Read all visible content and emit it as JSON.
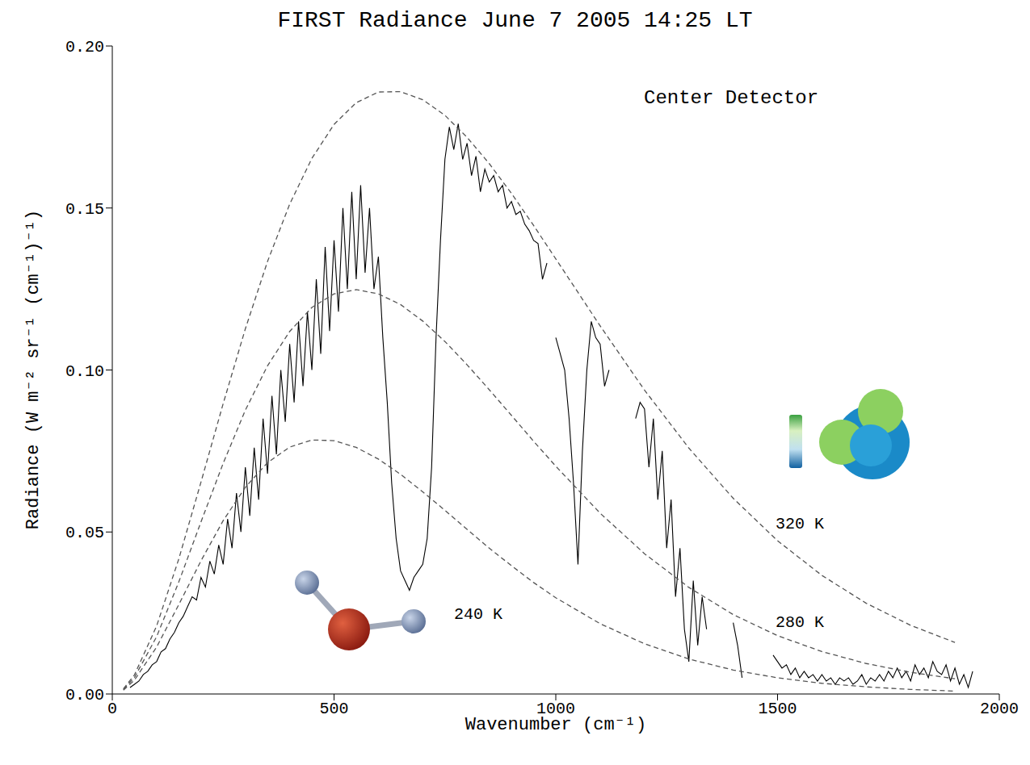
{
  "chart_data": {
    "type": "line",
    "title": "FIRST Radiance June 7 2005 14:25 LT",
    "x_label": "Wavenumber (cm⁻¹)",
    "y_label": "Radiance (W m⁻² sr⁻¹ (cm⁻¹)⁻¹)",
    "annotations": [
      "Center Detector"
    ],
    "xlim": [
      0,
      2000
    ],
    "xticks": [
      0,
      500,
      1000,
      1500,
      2000
    ],
    "ylim": [
      0,
      0.2
    ],
    "yticks": [
      {
        "value": 0,
        "label": "0.00"
      },
      {
        "value": 0.05,
        "label": "0.05"
      },
      {
        "value": 0.1,
        "label": "0.10"
      },
      {
        "value": 0.15,
        "label": "0.15"
      },
      {
        "value": 0.2,
        "label": "0.20"
      }
    ],
    "grid": false,
    "series": [
      {
        "color": "#000000",
        "line_style": "solid",
        "x": [
          40,
          50,
          60,
          70,
          80,
          90,
          100,
          110,
          120,
          130,
          140,
          150,
          160,
          170,
          180,
          190,
          200,
          210,
          220,
          230,
          240,
          250,
          260,
          270,
          280,
          290,
          300,
          310,
          320,
          330,
          340,
          350,
          360,
          370,
          380,
          390,
          400,
          410,
          420,
          430,
          440,
          450,
          460,
          470,
          480,
          490,
          500,
          510,
          520,
          530,
          540,
          550,
          560,
          570,
          580,
          590,
          600,
          610,
          620,
          630,
          640,
          650,
          660,
          670,
          680,
          690,
          700,
          710,
          720,
          730,
          740,
          750,
          760,
          770,
          780,
          790,
          800,
          810,
          820,
          830,
          840,
          850,
          860,
          870,
          880,
          890,
          900,
          910,
          920,
          930,
          940,
          950,
          960,
          970,
          980,
          990,
          1000,
          1010,
          1020,
          1030,
          1040,
          1050,
          1060,
          1070,
          1080,
          1090,
          1100,
          1110,
          1120,
          1130,
          1140,
          1150,
          1160,
          1170,
          1180,
          1190,
          1200,
          1210,
          1220,
          1230,
          1240,
          1250,
          1260,
          1270,
          1280,
          1290,
          1300,
          1310,
          1320,
          1330,
          1340,
          1350,
          1360,
          1370,
          1380,
          1390,
          1400,
          1410,
          1420,
          1430,
          1440,
          1450,
          1460,
          1470,
          1480,
          1490,
          1500,
          1510,
          1520,
          1530,
          1540,
          1550,
          1560,
          1570,
          1580,
          1590,
          1600,
          1610,
          1620,
          1630,
          1640,
          1650,
          1660,
          1670,
          1680,
          1690,
          1700,
          1710,
          1720,
          1730,
          1740,
          1750,
          1760,
          1770,
          1780,
          1790,
          1800,
          1810,
          1820,
          1830,
          1840,
          1850,
          1860,
          1870,
          1880,
          1890,
          1900,
          1910,
          1920,
          1930,
          1940
        ],
        "values": [
          0.002,
          0.003,
          0.004,
          0.006,
          0.007,
          0.009,
          0.01,
          0.013,
          0.014,
          0.017,
          0.019,
          0.022,
          0.024,
          0.027,
          0.03,
          0.029,
          0.036,
          0.033,
          0.041,
          0.037,
          0.046,
          0.04,
          0.054,
          0.045,
          0.062,
          0.05,
          0.07,
          0.055,
          0.076,
          0.06,
          0.085,
          0.068,
          0.092,
          0.074,
          0.1,
          0.084,
          0.108,
          0.09,
          0.115,
          0.095,
          0.118,
          0.1,
          0.128,
          0.105,
          0.138,
          0.112,
          0.14,
          0.118,
          0.15,
          0.125,
          0.155,
          0.128,
          0.157,
          0.13,
          0.15,
          0.125,
          0.135,
          0.11,
          0.09,
          0.065,
          0.048,
          0.038,
          0.035,
          0.032,
          0.036,
          0.038,
          0.04,
          0.048,
          0.07,
          0.11,
          0.14,
          0.165,
          0.175,
          0.168,
          0.176,
          0.165,
          0.17,
          0.16,
          0.166,
          0.155,
          0.162,
          0.158,
          0.16,
          0.155,
          0.157,
          0.15,
          0.152,
          0.148,
          0.149,
          0.145,
          0.143,
          0.14,
          0.139,
          0.128,
          0.133,
          null,
          0.11,
          0.105,
          0.1,
          0.085,
          0.065,
          0.04,
          0.075,
          0.1,
          0.115,
          0.11,
          0.108,
          0.095,
          0.1,
          null,
          null,
          null,
          null,
          null,
          0.085,
          0.09,
          0.088,
          0.07,
          0.085,
          0.06,
          0.075,
          0.045,
          0.06,
          0.03,
          0.045,
          0.02,
          0.01,
          0.035,
          0.015,
          0.03,
          0.02,
          null,
          null,
          null,
          null,
          null,
          0.022,
          0.015,
          0.005,
          null,
          null,
          null,
          null,
          null,
          null,
          0.012,
          0.01,
          0.008,
          0.009,
          0.006,
          0.008,
          0.005,
          0.007,
          0.005,
          0.006,
          0.004,
          0.006,
          0.004,
          0.005,
          0.003,
          0.005,
          0.004,
          0.005,
          0.003,
          0.004,
          0.006,
          0.003,
          0.005,
          0.004,
          0.006,
          0.004,
          0.007,
          0.005,
          0.008,
          0.005,
          0.007,
          0.004,
          0.009,
          0.006,
          0.008,
          0.005,
          0.01,
          0.007,
          0.006,
          0.009,
          0.004,
          0.008,
          0.003,
          0.006,
          0.002,
          0.007
        ]
      },
      {
        "name": "320 K",
        "color": "#555555",
        "line_style": "dashed",
        "x": [
          25,
          50,
          100,
          150,
          200,
          250,
          300,
          350,
          400,
          450,
          500,
          550,
          600,
          650,
          700,
          750,
          800,
          850,
          900,
          950,
          1000,
          1100,
          1200,
          1300,
          1400,
          1500,
          1600,
          1700,
          1800,
          1900
        ],
        "values": [
          0.0016,
          0.0059,
          0.021,
          0.0417,
          0.0654,
          0.0896,
          0.1127,
          0.1335,
          0.1512,
          0.1653,
          0.1758,
          0.1825,
          0.1858,
          0.1859,
          0.1834,
          0.1786,
          0.1718,
          0.1637,
          0.1545,
          0.1446,
          0.1343,
          0.1136,
          0.0938,
          0.0759,
          0.0604,
          0.0473,
          0.0366,
          0.028,
          0.0212,
          0.0159
        ]
      },
      {
        "name": "280 K",
        "color": "#555555",
        "line_style": "dashed",
        "x": [
          25,
          50,
          100,
          150,
          200,
          250,
          300,
          350,
          400,
          450,
          500,
          550,
          600,
          650,
          700,
          750,
          800,
          850,
          900,
          950,
          1000,
          1100,
          1200,
          1300,
          1400,
          1500,
          1600,
          1700,
          1800,
          1900
        ],
        "values": [
          0.0014,
          0.0051,
          0.0177,
          0.0346,
          0.0531,
          0.0712,
          0.0876,
          0.1013,
          0.1119,
          0.1193,
          0.1235,
          0.1248,
          0.1235,
          0.1202,
          0.1151,
          0.1088,
          0.1016,
          0.0939,
          0.086,
          0.078,
          0.0703,
          0.0558,
          0.0433,
          0.0329,
          0.0245,
          0.018,
          0.0131,
          0.0094,
          0.0067,
          0.0047
        ]
      },
      {
        "name": "240 K",
        "color": "#555555",
        "line_style": "dashed",
        "x": [
          25,
          50,
          100,
          150,
          200,
          250,
          300,
          350,
          400,
          450,
          500,
          550,
          600,
          650,
          700,
          750,
          800,
          850,
          900,
          950,
          1000,
          1100,
          1200,
          1300,
          1400,
          1500,
          1600,
          1700,
          1800,
          1900
        ],
        "values": [
          0.0012,
          0.0043,
          0.0145,
          0.0276,
          0.0411,
          0.0535,
          0.0638,
          0.0714,
          0.0762,
          0.0784,
          0.0782,
          0.0761,
          0.0725,
          0.0678,
          0.0624,
          0.0567,
          0.0508,
          0.045,
          0.0396,
          0.0344,
          0.0297,
          0.0217,
          0.0155,
          0.0108,
          0.0074,
          0.005,
          0.0033,
          0.0022,
          0.0014,
          0.0009
        ]
      }
    ]
  }
}
